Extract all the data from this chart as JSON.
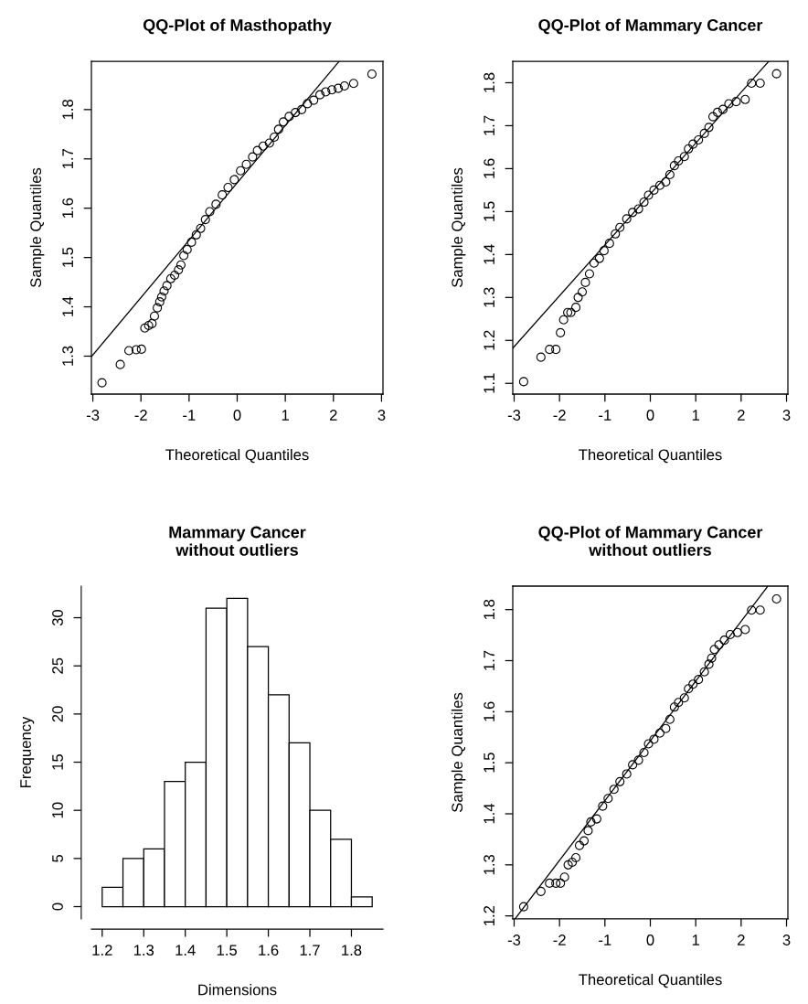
{
  "chart_data": [
    {
      "type": "scatter",
      "title": "QQ-Plot of Masthopathy",
      "xlabel": "Theoretical Quantiles",
      "ylabel": "Sample Quantiles",
      "xlim": [
        -3.03,
        3.03
      ],
      "ylim": [
        1.223,
        1.898
      ],
      "xticks": [
        -3,
        -2,
        -1,
        0,
        1,
        2,
        3
      ],
      "yticks": [
        1.3,
        1.4,
        1.5,
        1.6,
        1.7,
        1.8
      ],
      "grid": false,
      "series": [
        {
          "type": "scatter",
          "marker": "circle",
          "color": "#000000",
          "x": [
            -2.81,
            -2.43,
            -2.25,
            -2.1,
            -1.99,
            -1.92,
            -1.84,
            -1.77,
            -1.72,
            -1.66,
            -1.61,
            -1.57,
            -1.52,
            -1.46,
            -1.38,
            -1.3,
            -1.22,
            -1.17,
            -1.11,
            -1.04,
            -0.95,
            -0.85,
            -0.76,
            -0.66,
            -0.57,
            -0.44,
            -0.31,
            -0.19,
            -0.06,
            0.07,
            0.19,
            0.32,
            0.42,
            0.54,
            0.67,
            0.77,
            0.86,
            0.96,
            1.08,
            1.21,
            1.34,
            1.46,
            1.59,
            1.72,
            1.84,
            1.97,
            2.1,
            2.23,
            2.42,
            2.8
          ],
          "values": [
            1.246,
            1.283,
            1.311,
            1.313,
            1.314,
            1.357,
            1.362,
            1.366,
            1.381,
            1.398,
            1.41,
            1.42,
            1.432,
            1.443,
            1.457,
            1.464,
            1.475,
            1.485,
            1.504,
            1.516,
            1.531,
            1.546,
            1.559,
            1.577,
            1.593,
            1.608,
            1.627,
            1.642,
            1.658,
            1.676,
            1.689,
            1.704,
            1.717,
            1.726,
            1.732,
            1.744,
            1.76,
            1.775,
            1.786,
            1.794,
            1.8,
            1.812,
            1.819,
            1.83,
            1.836,
            1.84,
            1.843,
            1.848,
            1.853,
            1.872
          ]
        },
        {
          "type": "line",
          "color": "#000000",
          "x": [
            -3.03,
            2.12
          ],
          "values": [
            1.299,
            1.898
          ]
        }
      ]
    },
    {
      "type": "scatter",
      "title": "QQ-Plot of Mammary Cancer",
      "xlabel": "Theoretical Quantiles",
      "ylabel": "Sample Quantiles",
      "xlim": [
        -3.03,
        3.03
      ],
      "ylim": [
        1.075,
        1.85
      ],
      "xticks": [
        -3,
        -2,
        -1,
        0,
        1,
        2,
        3
      ],
      "yticks": [
        1.1,
        1.2,
        1.3,
        1.4,
        1.5,
        1.6,
        1.7,
        1.8
      ],
      "grid": false,
      "series": [
        {
          "type": "scatter",
          "marker": "circle",
          "color": "#000000",
          "x": [
            -2.79,
            -2.41,
            -2.22,
            -2.08,
            -1.98,
            -1.91,
            -1.82,
            -1.75,
            -1.64,
            -1.59,
            -1.5,
            -1.43,
            -1.34,
            -1.24,
            -1.12,
            -1.02,
            -0.9,
            -0.77,
            -0.67,
            -0.52,
            -0.39,
            -0.26,
            -0.14,
            -0.04,
            0.08,
            0.21,
            0.34,
            0.43,
            0.53,
            0.62,
            0.75,
            0.84,
            0.94,
            1.06,
            1.19,
            1.29,
            1.38,
            1.48,
            1.6,
            1.73,
            1.89,
            2.09,
            2.23,
            2.42,
            2.78
          ],
          "values": [
            1.104,
            1.161,
            1.179,
            1.179,
            1.218,
            1.248,
            1.265,
            1.265,
            1.277,
            1.3,
            1.313,
            1.335,
            1.355,
            1.38,
            1.391,
            1.409,
            1.426,
            1.448,
            1.463,
            1.483,
            1.498,
            1.506,
            1.522,
            1.538,
            1.55,
            1.561,
            1.569,
            1.586,
            1.607,
            1.618,
            1.628,
            1.646,
            1.657,
            1.667,
            1.682,
            1.696,
            1.721,
            1.731,
            1.738,
            1.751,
            1.756,
            1.761,
            1.799,
            1.799,
            1.821
          ]
        },
        {
          "type": "line",
          "color": "#000000",
          "x": [
            -3.03,
            2.61
          ],
          "values": [
            1.182,
            1.85
          ]
        }
      ]
    },
    {
      "type": "histogram",
      "title": "Mammary Cancer\nwithout outliers",
      "xlabel": "Dimensions",
      "ylabel": "Frequency",
      "color": "#ffffff",
      "xlim": [
        1.174,
        1.876
      ],
      "ylim": [
        -1.28,
        33.28
      ],
      "xticks": [
        1.2,
        1.3,
        1.4,
        1.5,
        1.6,
        1.7,
        1.8
      ],
      "yticks": [
        0,
        5,
        10,
        15,
        20,
        25,
        30
      ],
      "grid": false,
      "bins": [
        1.2,
        1.25,
        1.3,
        1.35,
        1.4,
        1.45,
        1.5,
        1.55,
        1.6,
        1.65,
        1.7,
        1.75,
        1.8,
        1.85
      ],
      "values": [
        2,
        5,
        6,
        13,
        15,
        31,
        32,
        27,
        22,
        17,
        10,
        7,
        1
      ]
    },
    {
      "type": "scatter",
      "title": "QQ-Plot of Mammary Cancer\nwithout outliers",
      "xlabel": "Theoretical Quantiles",
      "ylabel": "Sample Quantiles",
      "xlim": [
        -3.03,
        3.03
      ],
      "ylim": [
        1.194,
        1.846
      ],
      "xticks": [
        -3,
        -2,
        -1,
        0,
        1,
        2,
        3
      ],
      "yticks": [
        1.2,
        1.3,
        1.4,
        1.5,
        1.6,
        1.7,
        1.8
      ],
      "grid": false,
      "series": [
        {
          "type": "scatter",
          "marker": "circle",
          "color": "#000000",
          "x": [
            -2.79,
            -2.41,
            -2.22,
            -2.08,
            -1.98,
            -1.89,
            -1.81,
            -1.72,
            -1.64,
            -1.56,
            -1.46,
            -1.37,
            -1.31,
            -1.18,
            -1.05,
            -0.93,
            -0.8,
            -0.67,
            -0.52,
            -0.39,
            -0.26,
            -0.14,
            -0.04,
            0.08,
            0.21,
            0.34,
            0.43,
            0.53,
            0.62,
            0.75,
            0.84,
            0.94,
            1.06,
            1.19,
            1.29,
            1.35,
            1.41,
            1.51,
            1.63,
            1.76,
            1.92,
            2.09,
            2.23,
            2.42,
            2.78
          ],
          "values": [
            1.218,
            1.248,
            1.264,
            1.264,
            1.264,
            1.276,
            1.3,
            1.305,
            1.314,
            1.338,
            1.347,
            1.367,
            1.384,
            1.39,
            1.415,
            1.43,
            1.448,
            1.463,
            1.478,
            1.496,
            1.505,
            1.52,
            1.537,
            1.546,
            1.558,
            1.567,
            1.585,
            1.609,
            1.618,
            1.627,
            1.645,
            1.654,
            1.663,
            1.678,
            1.693,
            1.705,
            1.722,
            1.731,
            1.74,
            1.751,
            1.755,
            1.761,
            1.799,
            1.799,
            1.821
          ]
        },
        {
          "type": "line",
          "color": "#000000",
          "x": [
            -2.98,
            2.58
          ],
          "values": [
            1.194,
            1.845
          ]
        }
      ]
    }
  ]
}
